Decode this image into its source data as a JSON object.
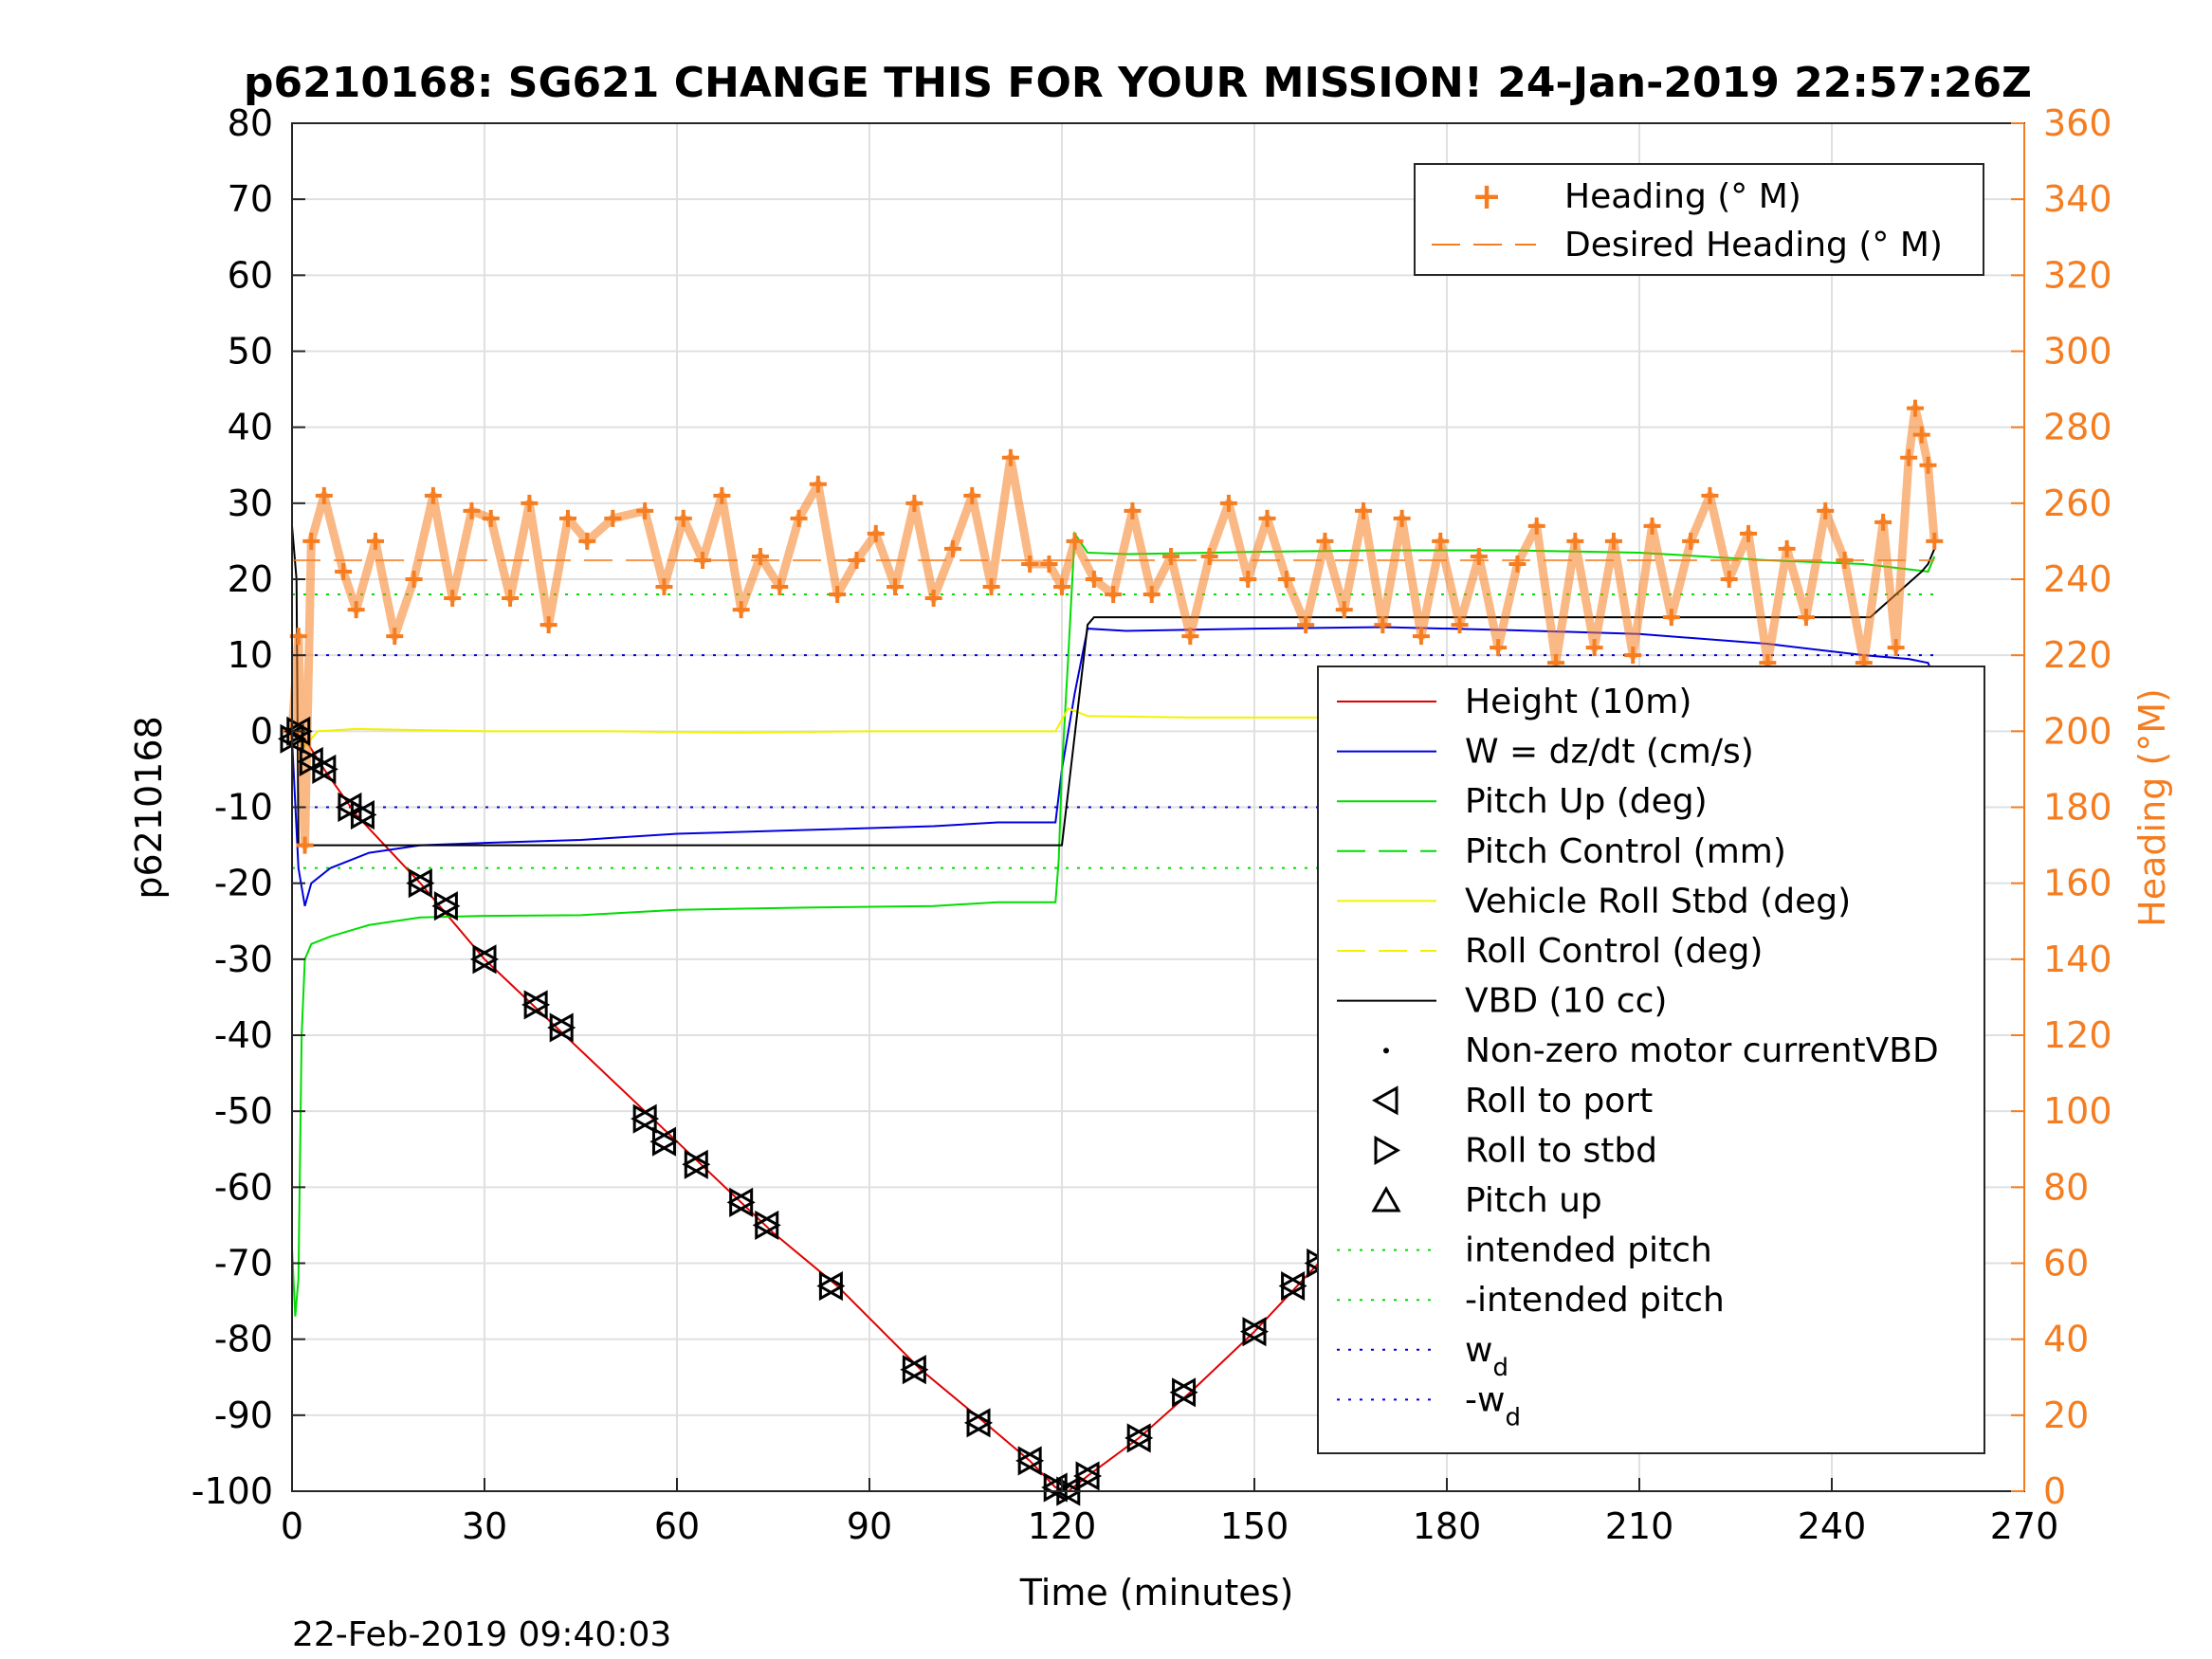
{
  "chart_data": {
    "type": "line",
    "title": "p6210168: SG621 CHANGE THIS FOR YOUR MISSION! 24-Jan-2019 22:57:26Z",
    "xlabel": "Time (minutes)",
    "ylabel": "p6210168",
    "y2label": "Heading (°M)",
    "xlim": [
      0,
      270
    ],
    "ylim": [
      -100,
      80
    ],
    "y2lim": [
      0,
      360
    ],
    "xticks": [
      "0",
      "30",
      "60",
      "90",
      "120",
      "150",
      "180",
      "210",
      "240",
      "270"
    ],
    "yticks": [
      "80",
      "70",
      "60",
      "50",
      "40",
      "30",
      "20",
      "10",
      "0",
      "-10",
      "-20",
      "-30",
      "-40",
      "-50",
      "-60",
      "-70",
      "-80",
      "-90",
      "-100"
    ],
    "y2ticks": [
      "360",
      "340",
      "320",
      "300",
      "280",
      "260",
      "240",
      "220",
      "200",
      "180",
      "160",
      "140",
      "120",
      "100",
      "80",
      "60",
      "40",
      "20",
      "0"
    ],
    "grid": true,
    "footer": "22-Feb-2019 09:40:03",
    "colors": {
      "height": "#e00000",
      "w": "#0000dd",
      "pitch": "#00dd00",
      "roll": "#ffff00",
      "vbd": "#000000",
      "heading": "#f57d20",
      "grid": "#e0e0e0"
    },
    "legend_heading": [
      "Heading (° M)",
      "Desired Heading (° M)"
    ],
    "legend_main": [
      {
        "label": "Height (10m)",
        "style": "solid",
        "color": "#e00000"
      },
      {
        "label": "W = dz/dt (cm/s)",
        "style": "solid",
        "color": "#0000dd"
      },
      {
        "label": "Pitch Up (deg)",
        "style": "solid",
        "color": "#00dd00"
      },
      {
        "label": "Pitch Control (mm)",
        "style": "dashed",
        "color": "#00dd00"
      },
      {
        "label": "Vehicle Roll Stbd (deg)",
        "style": "solid",
        "color": "#ffff00"
      },
      {
        "label": "Roll Control (deg)",
        "style": "dashed",
        "color": "#ffff00"
      },
      {
        "label": "VBD (10 cc)",
        "style": "solid",
        "color": "#000000"
      },
      {
        "label": "Non-zero motor currentVBD",
        "style": "dot",
        "color": "#000000"
      },
      {
        "label": "Roll to port",
        "style": "tri-left",
        "color": "#000000"
      },
      {
        "label": "Roll to stbd",
        "style": "tri-right",
        "color": "#000000"
      },
      {
        "label": "Pitch up",
        "style": "tri-up",
        "color": "#000000"
      },
      {
        "label": "intended pitch",
        "style": "dotted",
        "color": "#00dd00"
      },
      {
        "label": "-intended pitch",
        "style": "dotted",
        "color": "#00dd00"
      },
      {
        "label": "w",
        "sub": "d",
        "style": "dotted",
        "color": "#0000dd"
      },
      {
        "label": "-w",
        "sub": "d",
        "style": "dotted",
        "color": "#0000dd"
      }
    ],
    "series": [
      {
        "name": "Height (10m)",
        "axis": "left",
        "x": [
          0,
          2,
          5,
          10,
          20,
          30,
          40,
          55,
          65,
          75,
          85,
          98,
          108,
          115,
          119,
          121,
          124,
          132,
          140,
          150,
          160,
          170,
          180,
          190,
          200,
          210,
          220,
          235,
          245,
          252,
          256
        ],
        "y": [
          0,
          -1,
          -5,
          -11,
          -20,
          -30,
          -38,
          -50,
          -58,
          -66,
          -73,
          -84,
          -91,
          -96,
          -99.5,
          -100,
          -98,
          -93,
          -87,
          -79,
          -70,
          -62,
          -55,
          -46,
          -38,
          -30,
          -23,
          -12,
          -6,
          -2,
          0
        ]
      },
      {
        "name": "W = dz/dt (cm/s)",
        "axis": "left",
        "x": [
          0,
          1,
          2,
          3,
          6,
          12,
          20,
          30,
          45,
          60,
          80,
          100,
          110,
          119,
          120,
          122,
          124,
          130,
          150,
          170,
          190,
          210,
          230,
          245,
          252,
          255,
          256
        ],
        "y": [
          -1,
          -18,
          -23,
          -20,
          -18,
          -16,
          -15,
          -14.7,
          -14.3,
          -13.5,
          -13,
          -12.5,
          -12,
          -12,
          -5,
          5,
          13.5,
          13.2,
          13.5,
          13.7,
          13.3,
          12.8,
          11.5,
          10,
          9.5,
          9,
          7
        ]
      },
      {
        "name": "Pitch Up (deg)",
        "axis": "left",
        "x": [
          0,
          0.5,
          1,
          1.5,
          2,
          3,
          6,
          12,
          20,
          30,
          45,
          60,
          80,
          100,
          110,
          119,
          119.5,
          120,
          121,
          122,
          124,
          130,
          150,
          170,
          190,
          210,
          230,
          245,
          255,
          256
        ],
        "y": [
          -68,
          -77,
          -72,
          -40,
          -30,
          -28,
          -27,
          -25.5,
          -24.5,
          -24.3,
          -24.2,
          -23.5,
          -23.2,
          -23,
          -22.5,
          -22.5,
          -17,
          -5,
          10,
          26,
          23.5,
          23.3,
          23.6,
          23.8,
          23.8,
          23.5,
          22.5,
          22,
          21,
          23
        ]
      },
      {
        "name": "Vehicle Roll Stbd (deg)",
        "axis": "left",
        "x": [
          0,
          2,
          4,
          10,
          30,
          50,
          70,
          90,
          110,
          119,
          121,
          124,
          140,
          160,
          180,
          200,
          220,
          240,
          250,
          255,
          256
        ],
        "y": [
          0,
          -2,
          0,
          0.3,
          0,
          0,
          -0.2,
          0,
          0,
          0,
          3,
          2,
          1.8,
          1.8,
          1.8,
          1.7,
          1.6,
          1.5,
          1.5,
          -12,
          3
        ]
      },
      {
        "name": "VBD (10 cc)",
        "axis": "left",
        "x": [
          0,
          0.7,
          1,
          2,
          119,
          120,
          124,
          125,
          240,
          244,
          246,
          248,
          250,
          252,
          254,
          255,
          256
        ],
        "y": [
          27,
          20,
          -15,
          -15,
          -15,
          -15,
          14,
          15,
          15,
          15,
          15,
          16.5,
          18,
          19.5,
          21,
          22,
          24
        ]
      },
      {
        "name": "Heading (° M)",
        "axis": "right",
        "x": [
          0,
          1,
          2,
          3,
          5,
          8,
          10,
          13,
          16,
          19,
          22,
          25,
          28,
          31,
          34,
          37,
          40,
          43,
          46,
          50,
          55,
          58,
          61,
          64,
          67,
          70,
          73,
          76,
          79,
          82,
          85,
          88,
          91,
          94,
          97,
          100,
          103,
          106,
          109,
          112,
          115,
          118,
          120,
          122,
          125,
          128,
          131,
          134,
          137,
          140,
          143,
          146,
          149,
          152,
          155,
          158,
          161,
          164,
          167,
          170,
          173,
          176,
          179,
          182,
          185,
          188,
          191,
          194,
          197,
          200,
          203,
          206,
          209,
          212,
          215,
          218,
          221,
          224,
          227,
          230,
          233,
          236,
          239,
          242,
          245,
          248,
          250,
          252,
          253,
          254,
          255,
          256
        ],
        "y": [
          200,
          225,
          170,
          250,
          262,
          242,
          232,
          250,
          225,
          240,
          262,
          235,
          258,
          256,
          235,
          260,
          228,
          256,
          250,
          256,
          258,
          238,
          256,
          245,
          262,
          232,
          246,
          238,
          256,
          265,
          236,
          245,
          252,
          238,
          260,
          235,
          248,
          262,
          238,
          272,
          244,
          244,
          238,
          250,
          240,
          236,
          258,
          236,
          246,
          225,
          246,
          260,
          240,
          256,
          240,
          228,
          250,
          232,
          258,
          228,
          256,
          225,
          250,
          228,
          246,
          222,
          244,
          254,
          218,
          250,
          222,
          250,
          220,
          254,
          230,
          250,
          262,
          240,
          252,
          218,
          248,
          230,
          258,
          245,
          218,
          255,
          222,
          272,
          285,
          278,
          270,
          250
        ]
      },
      {
        "name": "Desired Heading (° M)",
        "axis": "right",
        "x": [
          0,
          256
        ],
        "y": [
          245,
          245
        ]
      }
    ],
    "reference_lines": [
      {
        "name": "intended pitch",
        "y": 18,
        "color": "#00dd00"
      },
      {
        "name": "-intended pitch",
        "y": -18,
        "color": "#00dd00"
      },
      {
        "name": "w_d",
        "y": 10,
        "color": "#0000dd"
      },
      {
        "name": "-w_d",
        "y": -10,
        "color": "#0000dd"
      }
    ],
    "roll_markers": {
      "x": [
        0,
        1,
        3,
        5,
        9,
        11,
        20,
        24,
        30,
        38,
        42,
        55,
        58,
        63,
        70,
        74,
        84,
        97,
        107,
        115,
        119,
        121,
        124,
        132,
        139,
        150,
        156,
        160,
        163,
        171,
        182,
        190,
        193,
        203,
        208,
        212,
        220,
        235,
        246,
        251,
        253,
        256
      ],
      "y": [
        -1,
        0,
        -4,
        -5,
        -10,
        -11,
        -20,
        -23,
        -30,
        -36,
        -39,
        -51,
        -54,
        -57,
        -62,
        -65,
        -73,
        -84,
        -91,
        -96,
        -99.5,
        -100,
        -98,
        -93,
        -87,
        -79,
        -73,
        -70,
        -66,
        -61,
        -52,
        -46,
        -43,
        -35,
        -31,
        -27,
        -22,
        -12,
        -6,
        -3,
        -2,
        0
      ]
    }
  }
}
